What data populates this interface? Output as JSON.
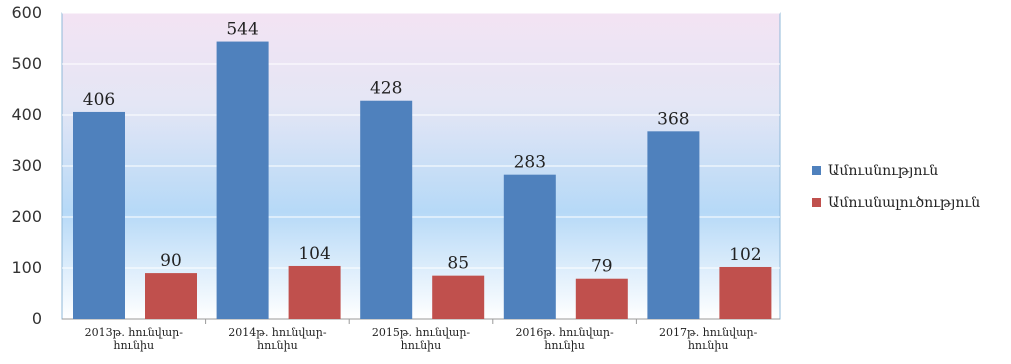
{
  "chart_data": {
    "type": "bar",
    "title": "",
    "xlabel": "",
    "ylabel": "",
    "ylim": [
      0,
      600
    ],
    "yticks": [
      0,
      100,
      200,
      300,
      400,
      500,
      600
    ],
    "grid": true,
    "legend_position": "right",
    "categories": [
      [
        "2013թ. հունվար-",
        "հունիս"
      ],
      [
        "2014թ. հունվար-",
        "հունիս"
      ],
      [
        "2015թ. հունվար-",
        "հունիս"
      ],
      [
        "2016թ. հունվար-",
        "հունիս"
      ],
      [
        "2017թ. հունվար-",
        "հունիս"
      ]
    ],
    "series": [
      {
        "name": "Ամուսնություն",
        "color": "#4f81bd",
        "values": [
          406,
          544,
          428,
          283,
          368
        ]
      },
      {
        "name": "Ամուսնալուծություն",
        "color": "#c0504d",
        "values": [
          90,
          104,
          85,
          79,
          102
        ]
      }
    ]
  }
}
